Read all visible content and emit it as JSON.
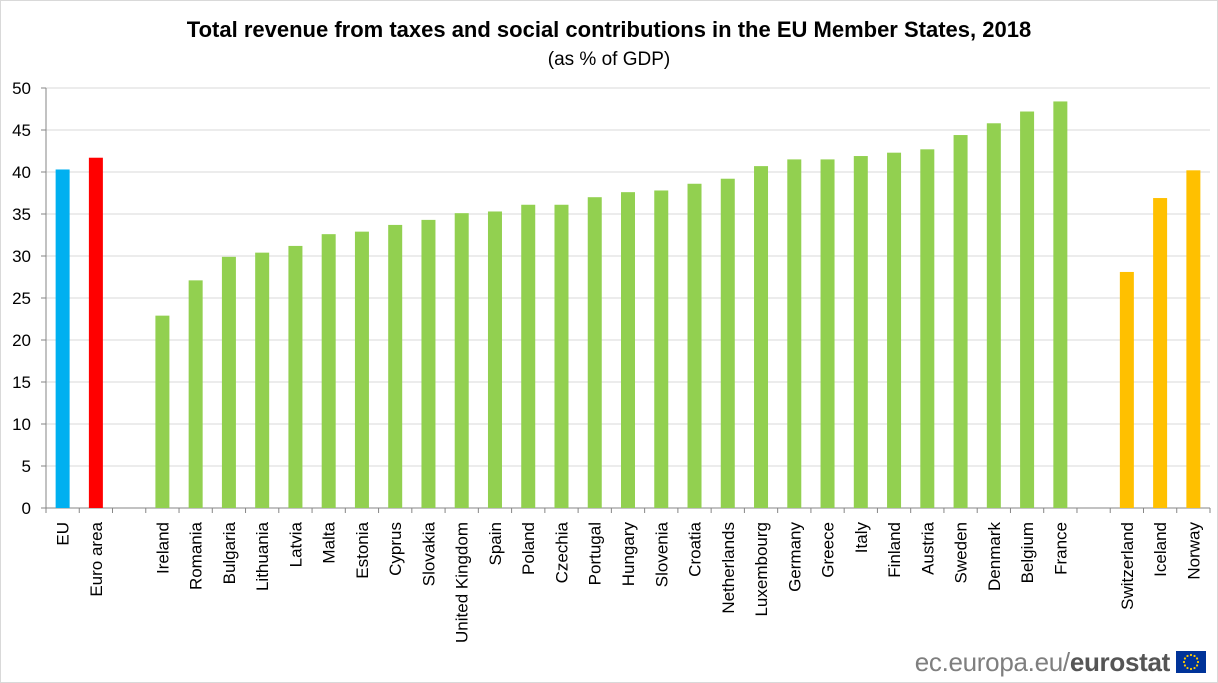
{
  "chart_data": {
    "type": "bar",
    "title": "Total revenue from taxes and social contributions in the EU Member States, 2018",
    "subtitle": "(as % of GDP)",
    "xlabel": "",
    "ylabel": "",
    "ylim": [
      0,
      50
    ],
    "yticks": [
      0,
      5,
      10,
      15,
      20,
      25,
      30,
      35,
      40,
      45,
      50
    ],
    "grid": true,
    "categories": [
      "EU",
      "Euro area",
      "",
      "Ireland",
      "Romania",
      "Bulgaria",
      "Lithuania",
      "Latvia",
      "Malta",
      "Estonia",
      "Cyprus",
      "Slovakia",
      "United Kingdom",
      "Spain",
      "Poland",
      "Czechia",
      "Portugal",
      "Hungary",
      "Slovenia",
      "Croatia",
      "Netherlands",
      "Luxembourg",
      "Germany",
      "Greece",
      "Italy",
      "Finland",
      "Austria",
      "Sweden",
      "Denmark",
      "Belgium",
      "France",
      "",
      "Switzerland",
      "Iceland",
      "Norway"
    ],
    "values": [
      40.3,
      41.7,
      null,
      22.9,
      27.1,
      29.9,
      30.4,
      31.2,
      32.6,
      32.9,
      33.7,
      34.3,
      35.1,
      35.3,
      36.1,
      36.1,
      37.0,
      37.6,
      37.8,
      38.6,
      39.2,
      40.7,
      41.5,
      41.5,
      41.9,
      42.3,
      42.7,
      44.4,
      45.8,
      47.2,
      48.4,
      null,
      28.1,
      36.9,
      40.2
    ],
    "colors": [
      "#00b0f0",
      "#ff0000",
      null,
      "#92d050",
      "#92d050",
      "#92d050",
      "#92d050",
      "#92d050",
      "#92d050",
      "#92d050",
      "#92d050",
      "#92d050",
      "#92d050",
      "#92d050",
      "#92d050",
      "#92d050",
      "#92d050",
      "#92d050",
      "#92d050",
      "#92d050",
      "#92d050",
      "#92d050",
      "#92d050",
      "#92d050",
      "#92d050",
      "#92d050",
      "#92d050",
      "#92d050",
      "#92d050",
      "#92d050",
      "#92d050",
      null,
      "#ffc000",
      "#ffc000",
      "#ffc000"
    ]
  },
  "footer": {
    "site": "ec.europa.eu/",
    "brand": "eurostat",
    "logo_icon": "eu-flag-icon",
    "flag_color": "#003399",
    "star_color": "#ffcc00"
  }
}
